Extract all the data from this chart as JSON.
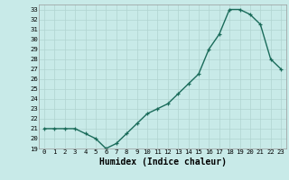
{
  "x": [
    0,
    1,
    2,
    3,
    4,
    5,
    6,
    7,
    8,
    9,
    10,
    11,
    12,
    13,
    14,
    15,
    16,
    17,
    18,
    19,
    20,
    21,
    22,
    23
  ],
  "y": [
    21,
    21,
    21,
    21,
    20.5,
    20,
    19,
    19.5,
    20.5,
    21.5,
    22.5,
    23,
    23.5,
    24.5,
    25.5,
    26.5,
    29,
    30.5,
    33,
    33,
    32.5,
    31.5,
    28,
    27
  ],
  "xlabel": "Humidex (Indice chaleur)",
  "ylim": [
    19,
    33.5
  ],
  "xlim": [
    -0.5,
    23.5
  ],
  "yticks": [
    19,
    20,
    21,
    22,
    23,
    24,
    25,
    26,
    27,
    28,
    29,
    30,
    31,
    32,
    33
  ],
  "xticks": [
    0,
    1,
    2,
    3,
    4,
    5,
    6,
    7,
    8,
    9,
    10,
    11,
    12,
    13,
    14,
    15,
    16,
    17,
    18,
    19,
    20,
    21,
    22,
    23
  ],
  "line_color": "#1a6b5a",
  "marker_color": "#1a6b5a",
  "bg_color": "#c8eae8",
  "grid_color": "#b0d4d0",
  "tick_label_fontsize": 5.2,
  "xlabel_fontsize": 7.0,
  "marker_size": 3.0,
  "line_width": 1.0
}
